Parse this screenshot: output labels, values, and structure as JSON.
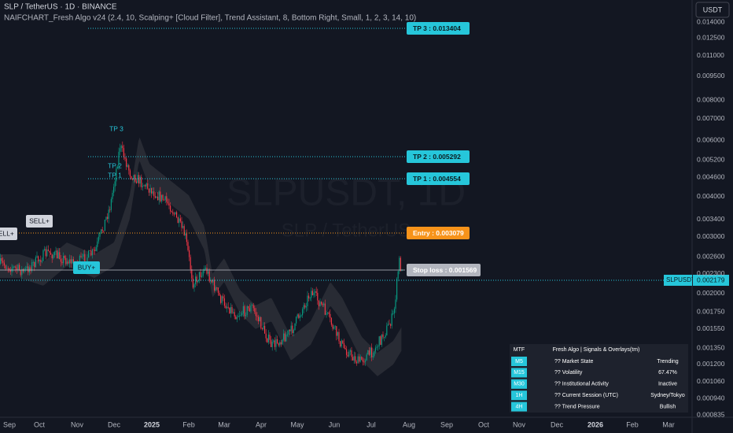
{
  "header": {
    "symbol": "SLP / TetherUS · 1D · BINANCE",
    "indicator": "NAIFCHART_Fresh Algo v24 (2.4, 10, Scalping+ [Cloud Filter], Trend Assistant, 8, Bottom Right, Small, 1, 2, 3, 14, 10)",
    "currency": "USDT"
  },
  "watermark": {
    "ticker": "SLPUSDT, 1D",
    "name": "SLP / TetherUS"
  },
  "price_axis": [
    "0.014000",
    "0.012500",
    "0.011000",
    "0.009500",
    "0.008000",
    "0.007000",
    "0.006000",
    "0.005200",
    "0.004600",
    "0.004000",
    "0.003400",
    "0.003000",
    "0.002600",
    "0.002300",
    "0.002000",
    "0.001750",
    "0.001550",
    "0.001350",
    "0.001200",
    "0.001060",
    "0.000940",
    "0.000835"
  ],
  "time_axis": [
    "Sep",
    "Oct",
    "Nov",
    "Dec",
    "2025",
    "Feb",
    "Mar",
    "Apr",
    "May",
    "Jun",
    "Jul",
    "Aug",
    "Sep",
    "Oct",
    "Nov",
    "Dec",
    "2026",
    "Feb",
    "Mar"
  ],
  "levels": [
    {
      "label": "TP 3 : 0.013404",
      "kind": "tp"
    },
    {
      "label": "TP 2 : 0.005292",
      "kind": "tp"
    },
    {
      "label": "TP 1 : 0.004554",
      "kind": "tp"
    },
    {
      "label": "Entry : 0.003079",
      "kind": "entry"
    },
    {
      "label": "Stop loss : 0.001569",
      "kind": "sl"
    }
  ],
  "last_price": {
    "symbol": "SLPUSDT",
    "price": "0.002179"
  },
  "signals": [
    "TP 3",
    "TP 2",
    "TP 1",
    "SELL+",
    "SELL+",
    "BUY+"
  ],
  "table": {
    "header": [
      "MTF",
      "Fresh Algo | Signals & Overlays(tm)"
    ],
    "rows": [
      [
        "M5",
        "?? Market State",
        "Trending"
      ],
      [
        "M15",
        "?? Volatility",
        "67.47%"
      ],
      [
        "M30",
        "?? Institutional Activity",
        "Inactive"
      ],
      [
        "1H",
        "?? Current Session (UTC)",
        "Sydney/Tokyo"
      ],
      [
        "4H",
        "?? Trend Pressure",
        "Bullish"
      ]
    ]
  }
}
